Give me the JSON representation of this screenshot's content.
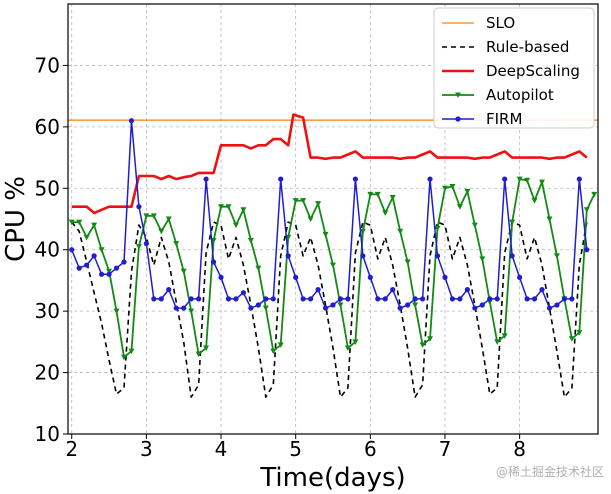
{
  "watermark": "@稀土掘金技术社区",
  "chart_data": {
    "type": "line",
    "title": "",
    "xlabel": "Time(days)",
    "ylabel": "CPU %",
    "xlim": [
      1.95,
      9.05
    ],
    "ylim": [
      10,
      80
    ],
    "xticks": [
      2,
      3,
      4,
      5,
      6,
      7,
      8
    ],
    "yticks": [
      10,
      20,
      30,
      40,
      50,
      60,
      70
    ],
    "grid": true,
    "legend_position": "top-right",
    "series": [
      {
        "name": "SLO",
        "color": "#ff7f0e",
        "dash": "",
        "width": 1.3,
        "marker": "none",
        "points": [
          [
            1.95,
            61.1
          ],
          [
            9.05,
            61.1
          ]
        ]
      },
      {
        "name": "Rule-based",
        "color": "#000000",
        "dash": "5,4",
        "width": 1.6,
        "marker": "none",
        "points": [
          [
            2.0,
            44.5
          ],
          [
            2.1,
            43.0
          ],
          [
            2.2,
            38.0
          ],
          [
            2.3,
            33.0
          ],
          [
            2.4,
            28.0
          ],
          [
            2.5,
            22.0
          ],
          [
            2.6,
            16.5
          ],
          [
            2.7,
            17.5
          ],
          [
            2.8,
            36.5
          ],
          [
            2.9,
            44.0
          ],
          [
            3.0,
            42.0
          ],
          [
            3.1,
            37.5
          ],
          [
            3.2,
            42.0
          ],
          [
            3.3,
            38.0
          ],
          [
            3.4,
            31.5
          ],
          [
            3.5,
            25.0
          ],
          [
            3.6,
            16.0
          ],
          [
            3.7,
            18.0
          ],
          [
            3.8,
            39.5
          ],
          [
            3.9,
            44.5
          ],
          [
            4.0,
            44.0
          ],
          [
            4.1,
            38.5
          ],
          [
            4.2,
            42.0
          ],
          [
            4.3,
            37.5
          ],
          [
            4.4,
            31.0
          ],
          [
            4.5,
            24.0
          ],
          [
            4.6,
            16.0
          ],
          [
            4.7,
            18.0
          ],
          [
            4.8,
            39.0
          ],
          [
            4.9,
            44.5
          ],
          [
            5.0,
            44.0
          ],
          [
            5.1,
            39.0
          ],
          [
            5.2,
            42.0
          ],
          [
            5.3,
            37.5
          ],
          [
            5.4,
            31.0
          ],
          [
            5.5,
            24.0
          ],
          [
            5.6,
            16.0
          ],
          [
            5.7,
            17.5
          ],
          [
            5.8,
            39.5
          ],
          [
            5.9,
            44.5
          ],
          [
            6.0,
            44.0
          ],
          [
            6.1,
            38.5
          ],
          [
            6.2,
            42.0
          ],
          [
            6.3,
            37.5
          ],
          [
            6.4,
            31.0
          ],
          [
            6.5,
            24.0
          ],
          [
            6.6,
            16.0
          ],
          [
            6.7,
            18.0
          ],
          [
            6.8,
            39.0
          ],
          [
            6.9,
            44.5
          ],
          [
            7.0,
            44.0
          ],
          [
            7.1,
            38.5
          ],
          [
            7.2,
            42.0
          ],
          [
            7.3,
            37.5
          ],
          [
            7.4,
            31.0
          ],
          [
            7.5,
            24.0
          ],
          [
            7.6,
            16.5
          ],
          [
            7.7,
            17.5
          ],
          [
            7.8,
            39.5
          ],
          [
            7.9,
            44.5
          ],
          [
            8.0,
            44.0
          ],
          [
            8.1,
            38.5
          ],
          [
            8.2,
            42.0
          ],
          [
            8.3,
            37.5
          ],
          [
            8.4,
            30.5
          ],
          [
            8.5,
            23.5
          ],
          [
            8.6,
            16.0
          ],
          [
            8.7,
            17.5
          ],
          [
            8.8,
            37.5
          ],
          [
            8.9,
            44.5
          ]
        ]
      },
      {
        "name": "DeepScaling",
        "color": "#ee1111",
        "dash": "",
        "width": 2.6,
        "marker": "none",
        "points": [
          [
            2.0,
            47.0
          ],
          [
            2.1,
            47.0
          ],
          [
            2.2,
            47.0
          ],
          [
            2.3,
            46.0
          ],
          [
            2.4,
            46.5
          ],
          [
            2.5,
            47.0
          ],
          [
            2.6,
            47.0
          ],
          [
            2.7,
            47.0
          ],
          [
            2.8,
            47.0
          ],
          [
            2.9,
            52.0
          ],
          [
            3.0,
            52.0
          ],
          [
            3.1,
            52.0
          ],
          [
            3.2,
            51.5
          ],
          [
            3.3,
            52.0
          ],
          [
            3.4,
            51.5
          ],
          [
            3.5,
            51.8
          ],
          [
            3.6,
            52.0
          ],
          [
            3.7,
            52.5
          ],
          [
            3.8,
            52.5
          ],
          [
            3.9,
            52.5
          ],
          [
            4.0,
            57.0
          ],
          [
            4.1,
            57.0
          ],
          [
            4.2,
            57.0
          ],
          [
            4.3,
            57.0
          ],
          [
            4.4,
            56.5
          ],
          [
            4.5,
            57.0
          ],
          [
            4.6,
            57.0
          ],
          [
            4.7,
            58.0
          ],
          [
            4.8,
            58.0
          ],
          [
            4.9,
            57.0
          ],
          [
            4.97,
            62.0
          ],
          [
            5.1,
            61.5
          ],
          [
            5.2,
            55.0
          ],
          [
            5.3,
            55.0
          ],
          [
            5.4,
            54.8
          ],
          [
            5.5,
            55.0
          ],
          [
            5.6,
            55.0
          ],
          [
            5.7,
            55.5
          ],
          [
            5.8,
            56.0
          ],
          [
            5.9,
            55.0
          ],
          [
            6.0,
            55.0
          ],
          [
            6.1,
            55.0
          ],
          [
            6.2,
            55.0
          ],
          [
            6.3,
            55.0
          ],
          [
            6.4,
            54.8
          ],
          [
            6.5,
            55.0
          ],
          [
            6.6,
            55.0
          ],
          [
            6.7,
            55.5
          ],
          [
            6.8,
            56.0
          ],
          [
            6.9,
            55.0
          ],
          [
            7.0,
            55.0
          ],
          [
            7.1,
            55.0
          ],
          [
            7.2,
            55.0
          ],
          [
            7.3,
            55.0
          ],
          [
            7.4,
            54.8
          ],
          [
            7.5,
            55.0
          ],
          [
            7.6,
            55.0
          ],
          [
            7.7,
            55.5
          ],
          [
            7.8,
            56.0
          ],
          [
            7.9,
            55.0
          ],
          [
            8.0,
            55.0
          ],
          [
            8.1,
            55.0
          ],
          [
            8.2,
            55.0
          ],
          [
            8.3,
            55.0
          ],
          [
            8.4,
            54.8
          ],
          [
            8.5,
            55.0
          ],
          [
            8.6,
            55.0
          ],
          [
            8.7,
            55.5
          ],
          [
            8.8,
            56.0
          ],
          [
            8.9,
            55.0
          ]
        ]
      },
      {
        "name": "Autopilot",
        "color": "#138a13",
        "dash": "",
        "width": 1.8,
        "marker": "triangle-down",
        "points": [
          [
            2.0,
            44.5
          ],
          [
            2.1,
            44.5
          ],
          [
            2.2,
            42.0
          ],
          [
            2.3,
            44.0
          ],
          [
            2.4,
            40.0
          ],
          [
            2.5,
            36.5
          ],
          [
            2.6,
            30.0
          ],
          [
            2.7,
            22.5
          ],
          [
            2.8,
            23.5
          ],
          [
            2.9,
            40.5
          ],
          [
            3.0,
            45.5
          ],
          [
            3.1,
            45.5
          ],
          [
            3.2,
            43.0
          ],
          [
            3.3,
            45.0
          ],
          [
            3.4,
            41.0
          ],
          [
            3.5,
            36.5
          ],
          [
            3.6,
            30.0
          ],
          [
            3.7,
            23.0
          ],
          [
            3.8,
            24.0
          ],
          [
            3.9,
            41.5
          ],
          [
            4.0,
            47.0
          ],
          [
            4.1,
            47.0
          ],
          [
            4.2,
            44.0
          ],
          [
            4.3,
            46.5
          ],
          [
            4.4,
            41.5
          ],
          [
            4.5,
            37.0
          ],
          [
            4.6,
            30.5
          ],
          [
            4.7,
            23.5
          ],
          [
            4.8,
            24.5
          ],
          [
            4.9,
            42.0
          ],
          [
            5.0,
            48.0
          ],
          [
            5.1,
            48.0
          ],
          [
            5.2,
            45.0
          ],
          [
            5.3,
            47.5
          ],
          [
            5.4,
            42.5
          ],
          [
            5.5,
            37.5
          ],
          [
            5.6,
            31.0
          ],
          [
            5.7,
            24.0
          ],
          [
            5.8,
            25.0
          ],
          [
            5.9,
            43.0
          ],
          [
            6.0,
            49.0
          ],
          [
            6.1,
            49.0
          ],
          [
            6.2,
            46.0
          ],
          [
            6.3,
            48.5
          ],
          [
            6.4,
            43.0
          ],
          [
            6.5,
            38.0
          ],
          [
            6.6,
            31.0
          ],
          [
            6.7,
            24.5
          ],
          [
            6.8,
            25.5
          ],
          [
            6.9,
            43.5
          ],
          [
            7.0,
            50.0
          ],
          [
            7.1,
            50.3
          ],
          [
            7.2,
            47.0
          ],
          [
            7.3,
            49.5
          ],
          [
            7.4,
            44.0
          ],
          [
            7.5,
            38.5
          ],
          [
            7.6,
            31.5
          ],
          [
            7.7,
            25.0
          ],
          [
            7.8,
            26.0
          ],
          [
            7.9,
            44.5
          ],
          [
            8.0,
            51.5
          ],
          [
            8.1,
            51.3
          ],
          [
            8.2,
            48.0
          ],
          [
            8.3,
            51.0
          ],
          [
            8.4,
            45.0
          ],
          [
            8.5,
            39.0
          ],
          [
            8.6,
            32.0
          ],
          [
            8.7,
            25.5
          ],
          [
            8.8,
            26.5
          ],
          [
            8.9,
            46.5
          ],
          [
            9.0,
            49.0
          ]
        ]
      },
      {
        "name": "FIRM",
        "color": "#1f1fd1",
        "dash": "",
        "width": 1.5,
        "marker": "circle",
        "points": [
          [
            2.0,
            40.0
          ],
          [
            2.1,
            37.0
          ],
          [
            2.2,
            37.5
          ],
          [
            2.3,
            39.0
          ],
          [
            2.4,
            36.0
          ],
          [
            2.5,
            36.0
          ],
          [
            2.6,
            37.0
          ],
          [
            2.7,
            38.0
          ],
          [
            2.8,
            61.0
          ],
          [
            2.9,
            47.0
          ],
          [
            3.0,
            41.0
          ],
          [
            3.1,
            32.0
          ],
          [
            3.2,
            32.0
          ],
          [
            3.3,
            33.5
          ],
          [
            3.4,
            30.5
          ],
          [
            3.5,
            30.5
          ],
          [
            3.6,
            32.0
          ],
          [
            3.7,
            32.0
          ],
          [
            3.8,
            51.5
          ],
          [
            3.9,
            38.0
          ],
          [
            4.0,
            35.5
          ],
          [
            4.1,
            32.0
          ],
          [
            4.2,
            32.0
          ],
          [
            4.3,
            33.0
          ],
          [
            4.4,
            30.5
          ],
          [
            4.5,
            31.0
          ],
          [
            4.6,
            32.0
          ],
          [
            4.7,
            32.0
          ],
          [
            4.8,
            51.5
          ],
          [
            4.9,
            39.0
          ],
          [
            5.0,
            35.5
          ],
          [
            5.1,
            32.0
          ],
          [
            5.2,
            32.0
          ],
          [
            5.3,
            33.5
          ],
          [
            5.4,
            30.5
          ],
          [
            5.5,
            31.0
          ],
          [
            5.6,
            32.0
          ],
          [
            5.7,
            32.0
          ],
          [
            5.8,
            51.5
          ],
          [
            5.9,
            39.0
          ],
          [
            6.0,
            35.5
          ],
          [
            6.1,
            32.0
          ],
          [
            6.2,
            32.0
          ],
          [
            6.3,
            33.5
          ],
          [
            6.4,
            30.5
          ],
          [
            6.5,
            31.0
          ],
          [
            6.6,
            32.0
          ],
          [
            6.7,
            32.0
          ],
          [
            6.8,
            51.5
          ],
          [
            6.9,
            39.0
          ],
          [
            7.0,
            35.5
          ],
          [
            7.1,
            32.0
          ],
          [
            7.2,
            32.0
          ],
          [
            7.3,
            33.5
          ],
          [
            7.4,
            30.5
          ],
          [
            7.5,
            31.0
          ],
          [
            7.6,
            32.0
          ],
          [
            7.7,
            32.0
          ],
          [
            7.8,
            51.5
          ],
          [
            7.9,
            39.0
          ],
          [
            8.0,
            35.5
          ],
          [
            8.1,
            32.0
          ],
          [
            8.2,
            32.0
          ],
          [
            8.3,
            33.5
          ],
          [
            8.4,
            30.5
          ],
          [
            8.5,
            31.0
          ],
          [
            8.6,
            32.0
          ],
          [
            8.7,
            32.0
          ],
          [
            8.8,
            51.5
          ],
          [
            8.9,
            40.0
          ]
        ]
      }
    ]
  }
}
